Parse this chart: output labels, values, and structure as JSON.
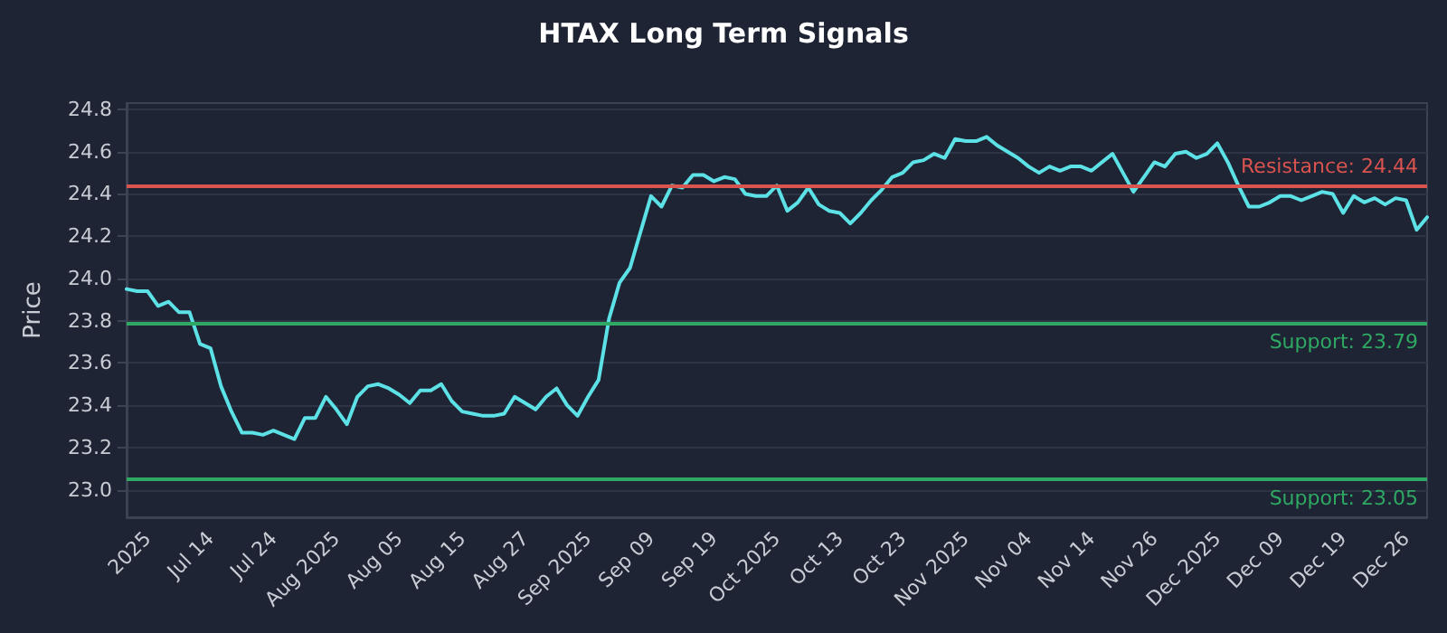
{
  "chart_data": {
    "type": "line",
    "title": "HTAX Long Term Signals",
    "ylabel": "Price",
    "categories": [
      null,
      null,
      "2025",
      null,
      null,
      null,
      null,
      null,
      "Jul 14",
      null,
      null,
      null,
      null,
      null,
      "Jul 24",
      null,
      null,
      null,
      null,
      null,
      "Aug 2025",
      null,
      null,
      null,
      null,
      null,
      "Aug 05",
      null,
      null,
      null,
      null,
      null,
      "Aug 15",
      null,
      null,
      null,
      null,
      null,
      "Aug 27",
      null,
      null,
      null,
      null,
      null,
      "Sep 2025",
      null,
      null,
      null,
      null,
      null,
      "Sep 09",
      null,
      null,
      null,
      null,
      null,
      "Sep 19",
      null,
      null,
      null,
      null,
      null,
      "Oct 2025",
      null,
      null,
      null,
      null,
      null,
      "Oct 13",
      null,
      null,
      null,
      null,
      null,
      "Oct 23",
      null,
      null,
      null,
      null,
      null,
      "Nov 2025",
      null,
      null,
      null,
      null,
      null,
      "Nov 04",
      null,
      null,
      null,
      null,
      null,
      "Nov 14",
      null,
      null,
      null,
      null,
      null,
      "Nov 26",
      null,
      null,
      null,
      null,
      null,
      "Dec 2025",
      null,
      null,
      null,
      null,
      null,
      "Dec 09",
      null,
      null,
      null,
      null,
      null,
      "Dec 19",
      null,
      null,
      null,
      null,
      null,
      "Dec 26",
      null,
      null
    ],
    "series": [
      {
        "color": "#5ce1e6",
        "values": [
          23.95,
          23.94,
          23.94,
          23.87,
          23.89,
          23.84,
          23.84,
          23.69,
          23.67,
          23.49,
          23.37,
          23.27,
          23.27,
          23.26,
          23.28,
          23.26,
          23.24,
          23.34,
          23.34,
          23.44,
          23.38,
          23.31,
          23.44,
          23.49,
          23.5,
          23.48,
          23.45,
          23.41,
          23.47,
          23.47,
          23.5,
          23.42,
          23.37,
          23.36,
          23.35,
          23.35,
          23.36,
          23.44,
          23.41,
          23.38,
          23.44,
          23.48,
          23.4,
          23.35,
          23.44,
          23.52,
          23.81,
          23.98,
          24.05,
          24.22,
          24.39,
          24.34,
          24.44,
          24.43,
          24.49,
          24.49,
          24.46,
          24.48,
          24.47,
          24.4,
          24.39,
          24.39,
          24.44,
          24.32,
          24.36,
          24.43,
          24.35,
          24.32,
          24.31,
          24.26,
          24.31,
          24.37,
          24.42,
          24.48,
          24.5,
          24.55,
          24.56,
          24.59,
          24.57,
          24.66,
          24.65,
          24.65,
          24.67,
          24.63,
          24.6,
          24.57,
          24.53,
          24.5,
          24.53,
          24.51,
          24.53,
          24.53,
          24.51,
          24.55,
          24.59,
          24.5,
          24.41,
          24.48,
          24.55,
          24.53,
          24.59,
          24.6,
          24.57,
          24.59,
          24.64,
          24.55,
          24.44,
          24.34,
          24.34,
          24.36,
          24.39,
          24.39,
          24.37,
          24.39,
          24.41,
          24.4,
          24.31,
          24.39,
          24.36,
          24.38,
          24.35,
          24.38,
          24.37,
          24.23,
          24.29
        ]
      }
    ],
    "ylim": [
      22.87,
      24.83
    ],
    "yticks": [
      {
        "value": 23.0,
        "label": "23.0"
      },
      23.2,
      23.4,
      23.6,
      23.8,
      {
        "value": 24.0,
        "label": "24.0"
      },
      24.2,
      24.4,
      24.6,
      24.8
    ],
    "grid": "y",
    "marker": "none",
    "line_style": "solid",
    "ref_lines": [
      {
        "axis": "y",
        "value": 24.44,
        "label": "Resistance: 24.44",
        "color": "#d9534f"
      },
      {
        "axis": "y",
        "value": 23.79,
        "label": "Support: 23.79",
        "color": "#2ea862"
      },
      {
        "axis": "y",
        "value": 23.05,
        "label": "Support: 23.05",
        "color": "#2ea862"
      }
    ]
  }
}
